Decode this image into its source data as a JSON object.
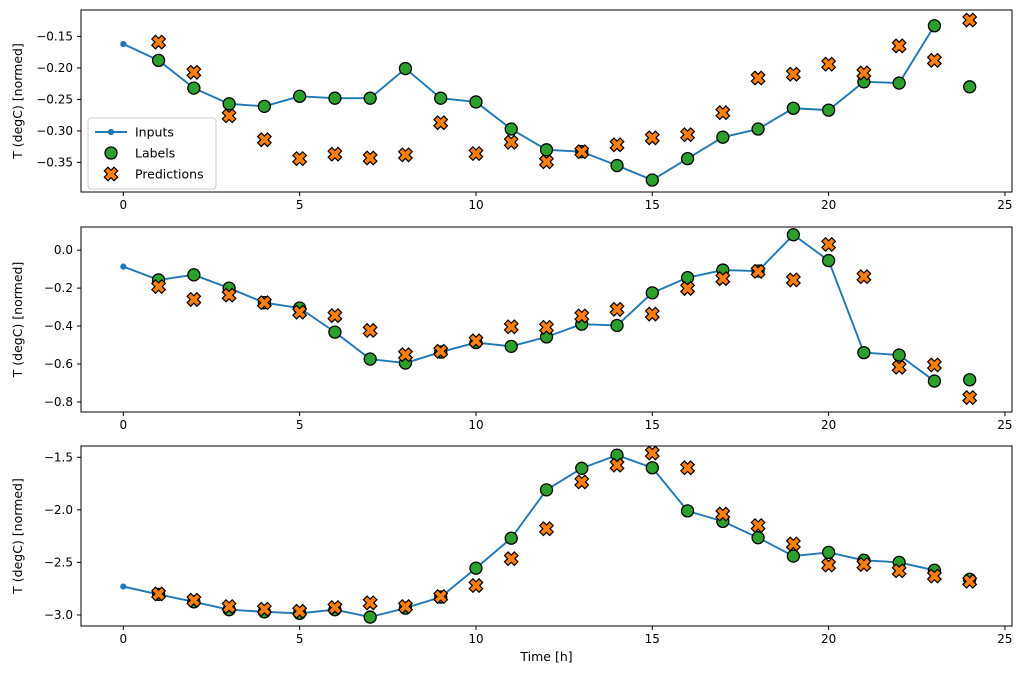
{
  "figure": {
    "background": "#ffffff",
    "description": "Three stacked time-series subplots comparing Inputs, Labels and Predictions"
  },
  "colors": {
    "inputs": "#1f77b4",
    "labels": "#2ca02c",
    "predictions": "#ff7f0e",
    "marker_edge": "#000000",
    "axis": "#000000",
    "legend_border": "#cccccc",
    "legend_bg": "#ffffff"
  },
  "legend": {
    "items": [
      {
        "label": "Inputs",
        "marker": "line-dot-icon"
      },
      {
        "label": "Labels",
        "marker": "circle-icon"
      },
      {
        "label": "Predictions",
        "marker": "x-icon"
      }
    ]
  },
  "chart_data": [
    {
      "type": "line",
      "subtype": "line+scatter",
      "ylabel": "T (degC) [normed]",
      "xlabel": "",
      "xlim": [
        -1.2,
        25.2
      ],
      "ylim": [
        -0.397,
        -0.108
      ],
      "xticks": [
        0,
        5,
        10,
        15,
        20,
        25
      ],
      "xtick_labels": [
        "0",
        "5",
        "10",
        "15",
        "20",
        "25"
      ],
      "yticks": [
        -0.15,
        -0.2,
        -0.25,
        -0.3,
        -0.35
      ],
      "ytick_labels": [
        "−0.15",
        "−0.20",
        "−0.25",
        "−0.30",
        "−0.35"
      ],
      "grid": false,
      "show_legend": true,
      "legend_position": "center-left",
      "series": [
        {
          "name": "Inputs",
          "kind": "line",
          "marker": "dot",
          "x": [
            0,
            1,
            2,
            3,
            4,
            5,
            6,
            7,
            8,
            9,
            10,
            11,
            12,
            13,
            14,
            15,
            16,
            17,
            18,
            19,
            20,
            21,
            22,
            23
          ],
          "y": [
            -0.162,
            -0.188,
            -0.232,
            -0.257,
            -0.261,
            -0.245,
            -0.248,
            -0.248,
            -0.201,
            -0.248,
            -0.254,
            -0.297,
            -0.33,
            -0.333,
            -0.355,
            -0.378,
            -0.344,
            -0.31,
            -0.297,
            -0.264,
            -0.267,
            -0.222,
            -0.224,
            -0.133
          ]
        },
        {
          "name": "Labels",
          "kind": "scatter",
          "marker": "circle",
          "x": [
            1,
            2,
            3,
            4,
            5,
            6,
            7,
            8,
            9,
            10,
            11,
            12,
            13,
            14,
            15,
            16,
            17,
            18,
            19,
            20,
            21,
            22,
            23,
            24
          ],
          "y": [
            -0.188,
            -0.232,
            -0.257,
            -0.261,
            -0.245,
            -0.248,
            -0.248,
            -0.201,
            -0.248,
            -0.254,
            -0.297,
            -0.33,
            -0.333,
            -0.355,
            -0.378,
            -0.344,
            -0.31,
            -0.297,
            -0.264,
            -0.267,
            -0.222,
            -0.224,
            -0.133,
            -0.23
          ]
        },
        {
          "name": "Predictions",
          "kind": "scatter",
          "marker": "x-thick",
          "x": [
            1,
            2,
            3,
            4,
            5,
            6,
            7,
            8,
            9,
            10,
            11,
            12,
            13,
            14,
            15,
            16,
            17,
            18,
            19,
            20,
            21,
            22,
            23,
            24
          ],
          "y": [
            -0.159,
            -0.207,
            -0.276,
            -0.314,
            -0.344,
            -0.337,
            -0.343,
            -0.338,
            -0.287,
            -0.336,
            -0.318,
            -0.349,
            -0.333,
            -0.322,
            -0.311,
            -0.306,
            -0.271,
            -0.216,
            -0.21,
            -0.194,
            -0.208,
            -0.165,
            -0.188,
            -0.124
          ]
        }
      ]
    },
    {
      "type": "line",
      "subtype": "line+scatter",
      "ylabel": "T (degC) [normed]",
      "xlabel": "",
      "xlim": [
        -1.2,
        25.2
      ],
      "ylim": [
        -0.853,
        0.122
      ],
      "xticks": [
        0,
        5,
        10,
        15,
        20,
        25
      ],
      "xtick_labels": [
        "0",
        "5",
        "10",
        "15",
        "20",
        "25"
      ],
      "yticks": [
        0.0,
        -0.2,
        -0.4,
        -0.6,
        -0.8
      ],
      "ytick_labels": [
        "0.0",
        "−0.2",
        "−0.4",
        "−0.6",
        "−0.8"
      ],
      "grid": false,
      "show_legend": false,
      "series": [
        {
          "name": "Inputs",
          "kind": "line",
          "marker": "dot",
          "x": [
            0,
            1,
            2,
            3,
            4,
            5,
            6,
            7,
            8,
            9,
            10,
            11,
            12,
            13,
            14,
            15,
            16,
            17,
            18,
            19,
            20,
            21,
            22,
            23
          ],
          "y": [
            -0.087,
            -0.157,
            -0.13,
            -0.2,
            -0.277,
            -0.305,
            -0.432,
            -0.574,
            -0.595,
            -0.537,
            -0.487,
            -0.507,
            -0.457,
            -0.39,
            -0.397,
            -0.225,
            -0.145,
            -0.105,
            -0.11,
            0.081,
            -0.055,
            -0.54,
            -0.553,
            -0.69
          ]
        },
        {
          "name": "Labels",
          "kind": "scatter",
          "marker": "circle",
          "x": [
            1,
            2,
            3,
            4,
            5,
            6,
            7,
            8,
            9,
            10,
            11,
            12,
            13,
            14,
            15,
            16,
            17,
            18,
            19,
            20,
            21,
            22,
            23,
            24
          ],
          "y": [
            -0.157,
            -0.13,
            -0.2,
            -0.277,
            -0.305,
            -0.432,
            -0.574,
            -0.595,
            -0.537,
            -0.487,
            -0.507,
            -0.457,
            -0.39,
            -0.397,
            -0.225,
            -0.145,
            -0.105,
            -0.11,
            0.081,
            -0.055,
            -0.54,
            -0.553,
            -0.69,
            -0.683
          ]
        },
        {
          "name": "Predictions",
          "kind": "scatter",
          "marker": "x-thick",
          "x": [
            1,
            2,
            3,
            4,
            5,
            6,
            7,
            8,
            9,
            10,
            11,
            12,
            13,
            14,
            15,
            16,
            17,
            18,
            19,
            20,
            21,
            22,
            23,
            24
          ],
          "y": [
            -0.192,
            -0.26,
            -0.237,
            -0.277,
            -0.327,
            -0.345,
            -0.423,
            -0.551,
            -0.533,
            -0.478,
            -0.404,
            -0.407,
            -0.347,
            -0.312,
            -0.337,
            -0.202,
            -0.15,
            -0.112,
            -0.157,
            0.03,
            -0.14,
            -0.617,
            -0.605,
            -0.777
          ]
        }
      ]
    },
    {
      "type": "line",
      "subtype": "line+scatter",
      "ylabel": "T (degC) [normed]",
      "xlabel": "Time [h]",
      "xlim": [
        -1.2,
        25.2
      ],
      "ylim": [
        -3.105,
        -1.393
      ],
      "xticks": [
        0,
        5,
        10,
        15,
        20,
        25
      ],
      "xtick_labels": [
        "0",
        "5",
        "10",
        "15",
        "20",
        "25"
      ],
      "yticks": [
        -1.5,
        -2.0,
        -2.5,
        -3.0
      ],
      "ytick_labels": [
        "−1.5",
        "−2.0",
        "−2.5",
        "−3.0"
      ],
      "grid": false,
      "show_legend": false,
      "series": [
        {
          "name": "Inputs",
          "kind": "line",
          "marker": "dot",
          "x": [
            0,
            1,
            2,
            3,
            4,
            5,
            6,
            7,
            8,
            9,
            10,
            11,
            12,
            13,
            14,
            15,
            16,
            17,
            18,
            19,
            20,
            21,
            22,
            23
          ],
          "y": [
            -2.73,
            -2.805,
            -2.875,
            -2.95,
            -2.97,
            -2.985,
            -2.95,
            -3.02,
            -2.935,
            -2.83,
            -2.555,
            -2.27,
            -1.81,
            -1.605,
            -1.48,
            -1.6,
            -2.01,
            -2.11,
            -2.265,
            -2.44,
            -2.405,
            -2.48,
            -2.5,
            -2.575
          ]
        },
        {
          "name": "Labels",
          "kind": "scatter",
          "marker": "circle",
          "x": [
            1,
            2,
            3,
            4,
            5,
            6,
            7,
            8,
            9,
            10,
            11,
            12,
            13,
            14,
            15,
            16,
            17,
            18,
            19,
            20,
            21,
            22,
            23,
            24
          ],
          "y": [
            -2.805,
            -2.875,
            -2.95,
            -2.97,
            -2.985,
            -2.95,
            -3.02,
            -2.935,
            -2.83,
            -2.555,
            -2.27,
            -1.81,
            -1.605,
            -1.48,
            -1.6,
            -2.01,
            -2.11,
            -2.265,
            -2.44,
            -2.405,
            -2.48,
            -2.5,
            -2.575,
            -2.66
          ]
        },
        {
          "name": "Predictions",
          "kind": "scatter",
          "marker": "x-thick",
          "x": [
            1,
            2,
            3,
            4,
            5,
            6,
            7,
            8,
            9,
            10,
            11,
            12,
            13,
            14,
            15,
            16,
            17,
            18,
            19,
            20,
            21,
            22,
            23,
            24
          ],
          "y": [
            -2.8,
            -2.86,
            -2.92,
            -2.945,
            -2.965,
            -2.93,
            -2.885,
            -2.92,
            -2.825,
            -2.72,
            -2.465,
            -2.18,
            -1.735,
            -1.575,
            -1.46,
            -1.6,
            -2.04,
            -2.15,
            -2.325,
            -2.525,
            -2.52,
            -2.58,
            -2.63,
            -2.68
          ]
        }
      ]
    }
  ]
}
